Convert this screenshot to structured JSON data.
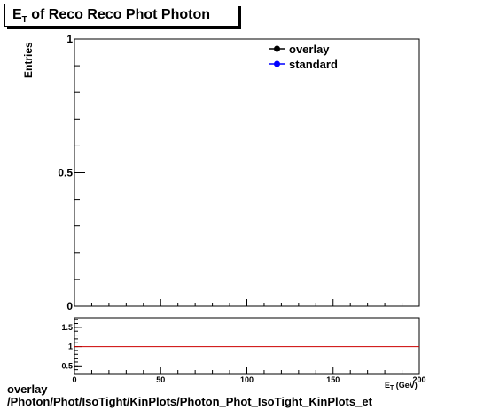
{
  "chart_data": [
    {
      "type": "line",
      "title_main": "E",
      "title_sub": "T",
      "title_rest": " of Reco Reco Phot Photon",
      "ylabel": "Entries",
      "xlabel": "E_{T} (GeV)",
      "ylim": [
        0,
        1
      ],
      "xlim": [
        0,
        200
      ],
      "y_ticks": [
        {
          "value": 0,
          "label": "0"
        },
        {
          "value": 0.5,
          "label": "0.5"
        },
        {
          "value": 1,
          "label": "1"
        }
      ],
      "series": [
        {
          "name": "overlay",
          "color": "#000000",
          "values": []
        },
        {
          "name": "standard",
          "color": "#0000ff",
          "values": []
        }
      ],
      "legend_position": "top-right",
      "grid": false
    },
    {
      "type": "line",
      "xlim": [
        0,
        200
      ],
      "ylim": [
        0.3,
        1.75
      ],
      "x_ticks": [
        {
          "value": 0,
          "label": "0"
        },
        {
          "value": 50,
          "label": "50"
        },
        {
          "value": 100,
          "label": "100"
        },
        {
          "value": 150,
          "label": "150"
        },
        {
          "value": 200,
          "label": "200"
        }
      ],
      "y_ticks": [
        {
          "value": 0.5,
          "label": "0.5"
        },
        {
          "value": 1,
          "label": "1"
        },
        {
          "value": 1.5,
          "label": "1.5"
        }
      ],
      "reference_line": {
        "y": 1,
        "color": "#cc0000"
      },
      "grid": false
    }
  ],
  "footer": {
    "line1": "overlay",
    "line2": "/Photon/Phot/IsoTight/KinPlots/Photon_Phot_IsoTight_KinPlots_et"
  }
}
